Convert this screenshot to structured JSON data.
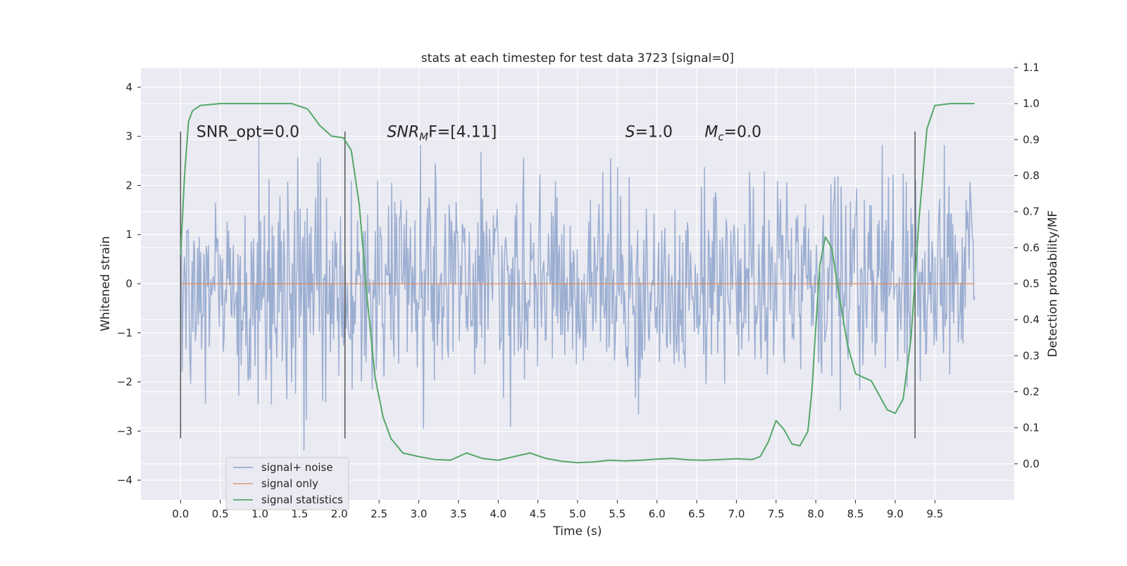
{
  "chart_data": {
    "type": "line",
    "title": "stats at each timestep for test data 3723 [signal=0]",
    "xlabel": "Time (s)",
    "ylabel": "Whitened strain",
    "ylabel_right": "Detection probability/MF",
    "xlim": [
      -0.5,
      10.5
    ],
    "ylim": [
      -4.4,
      4.4
    ],
    "ylim_right": [
      -0.1,
      1.1
    ],
    "x_ticks": [
      "0.0",
      "0.5",
      "1.0",
      "1.5",
      "2.0",
      "2.5",
      "3.0",
      "3.5",
      "4.0",
      "4.5",
      "5.0",
      "5.5",
      "6.0",
      "6.5",
      "7.0",
      "7.5",
      "8.0",
      "8.5",
      "9.0",
      "9.5"
    ],
    "y_ticks": [
      "−4",
      "−3",
      "−2",
      "−1",
      "0",
      "1",
      "2",
      "3",
      "4"
    ],
    "y_ticks_right": [
      "0.0",
      "0.1",
      "0.2",
      "0.3",
      "0.4",
      "0.5",
      "0.6",
      "0.7",
      "0.8",
      "0.9",
      "1.0",
      "1.1"
    ],
    "grid": true,
    "legend_position": "lower-left",
    "annotations": [
      {
        "text": "SNR_opt=0.0",
        "x": 0.2,
        "y": 3.1
      },
      {
        "text": "SNR",
        "sub": "M",
        "suffix": "F=[4.11]",
        "x": 2.6,
        "y": 3.1
      },
      {
        "text": "S",
        "suffix": "=1.0",
        "x": 5.6,
        "y": 3.1
      },
      {
        "text": "M",
        "sub": "c",
        "suffix": "=0.0",
        "x": 6.6,
        "y": 3.1
      }
    ],
    "vertical_markers": [
      0.0,
      2.07,
      9.25
    ],
    "vertical_marker_range": [
      -3.15,
      3.1
    ],
    "series": [
      {
        "name": "signal+ noise",
        "axis": "left",
        "color": "#4c72b0",
        "x_range": [
          0.0,
          10.0
        ],
        "sample_count": 1024,
        "description_values": "noisy whitened strain, bulk within about ±2, peaks to about ±4"
      },
      {
        "name": "signal only",
        "axis": "left",
        "color": "#dd8452",
        "x": [
          0.0,
          10.0
        ],
        "y": [
          0.0,
          0.0
        ]
      },
      {
        "name": "signal statistics",
        "axis": "right",
        "color": "#55a868",
        "x": [
          0.0,
          0.05,
          0.1,
          0.15,
          0.25,
          0.5,
          1.0,
          1.4,
          1.6,
          1.75,
          1.9,
          2.05,
          2.15,
          2.25,
          2.35,
          2.45,
          2.55,
          2.65,
          2.8,
          3.0,
          3.2,
          3.4,
          3.6,
          3.8,
          4.0,
          4.2,
          4.4,
          4.6,
          4.8,
          5.0,
          5.2,
          5.4,
          5.6,
          5.8,
          6.0,
          6.2,
          6.4,
          6.6,
          6.8,
          7.0,
          7.2,
          7.3,
          7.4,
          7.5,
          7.6,
          7.7,
          7.8,
          7.9,
          7.95,
          8.0,
          8.05,
          8.12,
          8.2,
          8.3,
          8.4,
          8.5,
          8.6,
          8.7,
          8.8,
          8.9,
          9.0,
          9.1,
          9.2,
          9.3,
          9.4,
          9.5,
          9.7,
          10.0
        ],
        "y": [
          0.58,
          0.8,
          0.95,
          0.98,
          0.995,
          1.0,
          1.0,
          1.0,
          0.985,
          0.94,
          0.91,
          0.905,
          0.87,
          0.72,
          0.46,
          0.24,
          0.13,
          0.07,
          0.03,
          0.02,
          0.012,
          0.01,
          0.03,
          0.015,
          0.01,
          0.02,
          0.03,
          0.015,
          0.007,
          0.003,
          0.005,
          0.01,
          0.008,
          0.01,
          0.013,
          0.015,
          0.011,
          0.01,
          0.012,
          0.014,
          0.012,
          0.02,
          0.06,
          0.12,
          0.095,
          0.055,
          0.05,
          0.09,
          0.2,
          0.38,
          0.55,
          0.63,
          0.6,
          0.46,
          0.33,
          0.25,
          0.24,
          0.23,
          0.19,
          0.15,
          0.14,
          0.18,
          0.35,
          0.68,
          0.93,
          0.995,
          1.0,
          1.0
        ]
      }
    ]
  }
}
